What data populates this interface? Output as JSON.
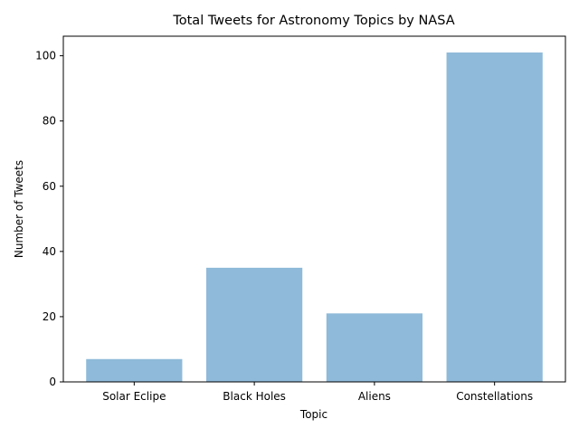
{
  "chart_data": {
    "type": "bar",
    "title": "Total Tweets for Astronomy Topics by NASA",
    "xlabel": "Topic",
    "ylabel": "Number of Tweets",
    "categories": [
      "Solar Eclipe",
      "Black Holes",
      "Aliens",
      "Constellations"
    ],
    "values": [
      7,
      35,
      21,
      101
    ],
    "ylim": [
      0,
      106
    ],
    "yticks": [
      0,
      20,
      40,
      60,
      80,
      100
    ],
    "grid": false,
    "legend": "none",
    "colors": {
      "bar": "#8fbad9",
      "axis": "#000000"
    }
  }
}
